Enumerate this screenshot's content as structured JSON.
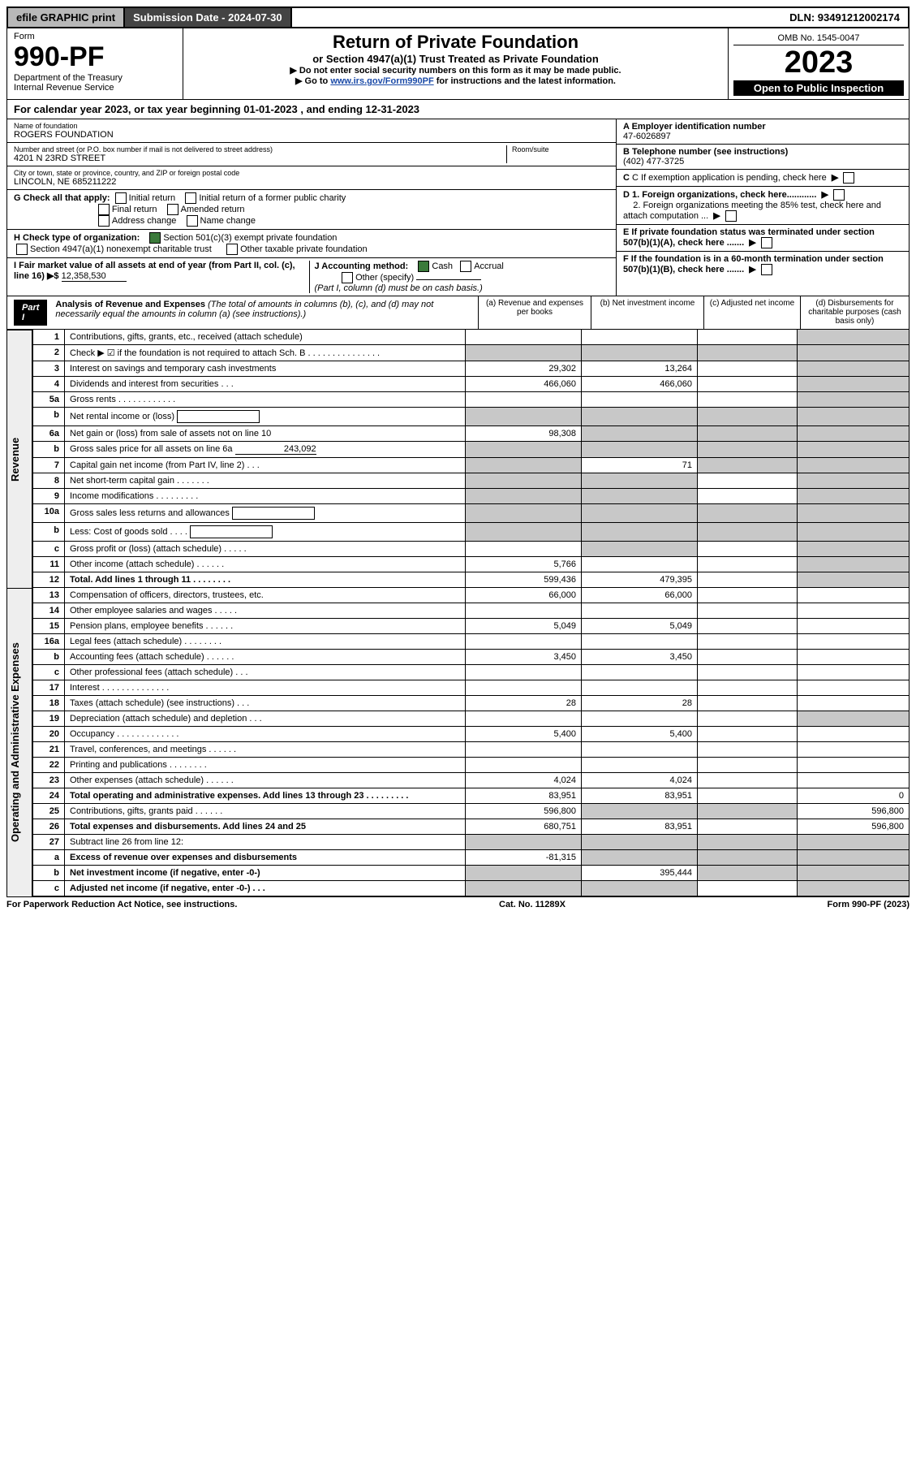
{
  "topbar": {
    "efile": "efile GRAPHIC print",
    "subdate_lbl": "Submission Date - 2024-07-30",
    "dln": "DLN: 93491212002174"
  },
  "header": {
    "form_word": "Form",
    "form_num": "990-PF",
    "dept": "Department of the Treasury",
    "irs": "Internal Revenue Service",
    "title": "Return of Private Foundation",
    "subtitle": "or Section 4947(a)(1) Trust Treated as Private Foundation",
    "instr1": "▶ Do not enter social security numbers on this form as it may be made public.",
    "instr2_pre": "▶ Go to ",
    "instr2_link": "www.irs.gov/Form990PF",
    "instr2_post": " for instructions and the latest information.",
    "omb": "OMB No. 1545-0047",
    "year": "2023",
    "open": "Open to Public Inspection"
  },
  "calyear": {
    "text_pre": "For calendar year 2023, or tax year beginning ",
    "begin": "01-01-2023",
    "mid": " , and ending ",
    "end": "12-31-2023"
  },
  "entity": {
    "name_lbl": "Name of foundation",
    "name": "ROGERS FOUNDATION",
    "addr_lbl": "Number and street (or P.O. box number if mail is not delivered to street address)",
    "addr": "4201 N 23RD STREET",
    "room_lbl": "Room/suite",
    "city_lbl": "City or town, state or province, country, and ZIP or foreign postal code",
    "city": "LINCOLN, NE  685211222",
    "a_lbl": "A Employer identification number",
    "a_val": "47-6026897",
    "b_lbl": "B Telephone number (see instructions)",
    "b_val": "(402) 477-3725",
    "c_lbl": "C If exemption application is pending, check here",
    "d1_lbl": "D 1. Foreign organizations, check here............",
    "d2_lbl": "2. Foreign organizations meeting the 85% test, check here and attach computation ...",
    "e_lbl": "E  If private foundation status was terminated under section 507(b)(1)(A), check here .......",
    "f_lbl": "F  If the foundation is in a 60-month termination under section 507(b)(1)(B), check here .......",
    "g_lbl": "G Check all that apply:",
    "g_opts": [
      "Initial return",
      "Initial return of a former public charity",
      "Final return",
      "Amended return",
      "Address change",
      "Name change"
    ],
    "h_lbl": "H Check type of organization:",
    "h_opt1": "Section 501(c)(3) exempt private foundation",
    "h_opt2": "Section 4947(a)(1) nonexempt charitable trust",
    "h_opt3": "Other taxable private foundation",
    "i_lbl": "I Fair market value of all assets at end of year (from Part II, col. (c), line 16)",
    "i_val": "12,358,530",
    "j_lbl": "J Accounting method:",
    "j_cash": "Cash",
    "j_accrual": "Accrual",
    "j_other": "Other (specify)",
    "j_note": "(Part I, column (d) must be on cash basis.)"
  },
  "part1": {
    "hdr": "Part I",
    "title": "Analysis of Revenue and Expenses",
    "title_note": "(The total of amounts in columns (b), (c), and (d) may not necessarily equal the amounts in column (a) (see instructions).)",
    "col_a": "(a)   Revenue and expenses per books",
    "col_b": "(b)   Net investment income",
    "col_c": "(c)   Adjusted net income",
    "col_d": "(d)   Disbursements for charitable purposes (cash basis only)",
    "side_rev": "Revenue",
    "side_exp": "Operating and Administrative Expenses"
  },
  "rows": [
    {
      "n": "1",
      "lbl": "Contributions, gifts, grants, etc., received (attach schedule)",
      "a": "",
      "b": "",
      "c": "",
      "d": "",
      "shade_d": true
    },
    {
      "n": "2",
      "lbl": "Check ▶ ☑ if the foundation is not required to attach Sch. B   .  .  .  .  .  .  .  .  .  .  .  .  .  .  .",
      "a": "",
      "b": "",
      "c": "",
      "d": "",
      "shade_all": true
    },
    {
      "n": "3",
      "lbl": "Interest on savings and temporary cash investments",
      "a": "29,302",
      "b": "13,264",
      "c": "",
      "d": "",
      "shade_d": true
    },
    {
      "n": "4",
      "lbl": "Dividends and interest from securities   .  .  .",
      "a": "466,060",
      "b": "466,060",
      "c": "",
      "d": "",
      "shade_d": true
    },
    {
      "n": "5a",
      "lbl": "Gross rents   .  .  .  .  .  .  .  .  .  .  .  .",
      "a": "",
      "b": "",
      "c": "",
      "d": "",
      "shade_d": true
    },
    {
      "n": "b",
      "lbl": "Net rental income or (loss)  ",
      "a": "",
      "b": "",
      "c": "",
      "d": "",
      "shade_all": true,
      "inline_box": true
    },
    {
      "n": "6a",
      "lbl": "Net gain or (loss) from sale of assets not on line 10",
      "a": "98,308",
      "b": "",
      "c": "",
      "d": "",
      "shade_bcd": true
    },
    {
      "n": "b",
      "lbl": "Gross sales price for all assets on line 6a",
      "inline_val": "243,092",
      "a": "",
      "b": "",
      "c": "",
      "d": "",
      "shade_all": true
    },
    {
      "n": "7",
      "lbl": "Capital gain net income (from Part IV, line 2)   .  .  .",
      "a": "",
      "b": "71",
      "c": "",
      "d": "",
      "shade_a": true,
      "shade_cd": true
    },
    {
      "n": "8",
      "lbl": "Net short-term capital gain   .  .  .  .  .  .  .",
      "a": "",
      "b": "",
      "c": "",
      "d": "",
      "shade_abd": true
    },
    {
      "n": "9",
      "lbl": "Income modifications   .  .  .  .  .  .  .  .  .",
      "a": "",
      "b": "",
      "c": "",
      "d": "",
      "shade_abd": true
    },
    {
      "n": "10a",
      "lbl": "Gross sales less returns and allowances",
      "a": "",
      "b": "",
      "c": "",
      "d": "",
      "shade_all": true,
      "inline_box": true
    },
    {
      "n": "b",
      "lbl": "Less: Cost of goods sold     .  .  .  .",
      "a": "",
      "b": "",
      "c": "",
      "d": "",
      "shade_all": true,
      "inline_box": true
    },
    {
      "n": "c",
      "lbl": "Gross profit or (loss) (attach schedule)   .  .  .  .  .",
      "a": "",
      "b": "",
      "c": "",
      "d": "",
      "shade_bd": true
    },
    {
      "n": "11",
      "lbl": "Other income (attach schedule)   .  .  .  .  .  .",
      "a": "5,766",
      "b": "",
      "c": "",
      "d": "",
      "shade_d": true
    },
    {
      "n": "12",
      "lbl": "Total. Add lines 1 through 11   .  .  .  .  .  .  .  .",
      "bold": true,
      "a": "599,436",
      "b": "479,395",
      "c": "",
      "d": "",
      "shade_d": true
    }
  ],
  "exp_rows": [
    {
      "n": "13",
      "lbl": "Compensation of officers, directors, trustees, etc.",
      "a": "66,000",
      "b": "66,000",
      "c": "",
      "d": ""
    },
    {
      "n": "14",
      "lbl": "Other employee salaries and wages   .  .  .  .  .",
      "a": "",
      "b": "",
      "c": "",
      "d": ""
    },
    {
      "n": "15",
      "lbl": "Pension plans, employee benefits   .  .  .  .  .  .",
      "a": "5,049",
      "b": "5,049",
      "c": "",
      "d": ""
    },
    {
      "n": "16a",
      "lbl": "Legal fees (attach schedule)  .  .  .  .  .  .  .  .",
      "a": "",
      "b": "",
      "c": "",
      "d": ""
    },
    {
      "n": "b",
      "lbl": "Accounting fees (attach schedule)  .  .  .  .  .  .",
      "a": "3,450",
      "b": "3,450",
      "c": "",
      "d": ""
    },
    {
      "n": "c",
      "lbl": "Other professional fees (attach schedule)   .  .  .",
      "a": "",
      "b": "",
      "c": "",
      "d": ""
    },
    {
      "n": "17",
      "lbl": "Interest  .  .  .  .  .  .  .  .  .  .  .  .  .  .",
      "a": "",
      "b": "",
      "c": "",
      "d": ""
    },
    {
      "n": "18",
      "lbl": "Taxes (attach schedule) (see instructions)   .  .  .",
      "a": "28",
      "b": "28",
      "c": "",
      "d": ""
    },
    {
      "n": "19",
      "lbl": "Depreciation (attach schedule) and depletion   .  .  .",
      "a": "",
      "b": "",
      "c": "",
      "d": "",
      "shade_d": true
    },
    {
      "n": "20",
      "lbl": "Occupancy  .  .  .  .  .  .  .  .  .  .  .  .  .",
      "a": "5,400",
      "b": "5,400",
      "c": "",
      "d": ""
    },
    {
      "n": "21",
      "lbl": "Travel, conferences, and meetings   .  .  .  .  .  .",
      "a": "",
      "b": "",
      "c": "",
      "d": ""
    },
    {
      "n": "22",
      "lbl": "Printing and publications   .  .  .  .  .  .  .  .",
      "a": "",
      "b": "",
      "c": "",
      "d": ""
    },
    {
      "n": "23",
      "lbl": "Other expenses (attach schedule)   .  .  .  .  .  .",
      "a": "4,024",
      "b": "4,024",
      "c": "",
      "d": ""
    },
    {
      "n": "24",
      "lbl": "Total operating and administrative expenses. Add lines 13 through 23   .  .  .  .  .  .  .  .  .",
      "bold": true,
      "a": "83,951",
      "b": "83,951",
      "c": "",
      "d": "0"
    },
    {
      "n": "25",
      "lbl": "Contributions, gifts, grants paid   .  .  .  .  .  .",
      "a": "596,800",
      "b": "",
      "c": "",
      "d": "596,800",
      "shade_bc": true
    },
    {
      "n": "26",
      "lbl": "Total expenses and disbursements. Add lines 24 and 25",
      "bold": true,
      "a": "680,751",
      "b": "83,951",
      "c": "",
      "d": "596,800"
    },
    {
      "n": "27",
      "lbl": "Subtract line 26 from line 12:",
      "a": "",
      "b": "",
      "c": "",
      "d": "",
      "shade_all": true
    },
    {
      "n": "a",
      "lbl": "Excess of revenue over expenses and disbursements",
      "bold": true,
      "a": "-81,315",
      "b": "",
      "c": "",
      "d": "",
      "shade_bcd": true
    },
    {
      "n": "b",
      "lbl": "Net investment income (if negative, enter -0-)",
      "bold": true,
      "a": "",
      "b": "395,444",
      "c": "",
      "d": "",
      "shade_a": true,
      "shade_cd": true
    },
    {
      "n": "c",
      "lbl": "Adjusted net income (if negative, enter -0-)   .  .  .",
      "bold": true,
      "a": "",
      "b": "",
      "c": "",
      "d": "",
      "shade_ab": true,
      "shade_d": true
    }
  ],
  "footer": {
    "left": "For Paperwork Reduction Act Notice, see instructions.",
    "mid": "Cat. No. 11289X",
    "right": "Form 990-PF (2023)"
  }
}
